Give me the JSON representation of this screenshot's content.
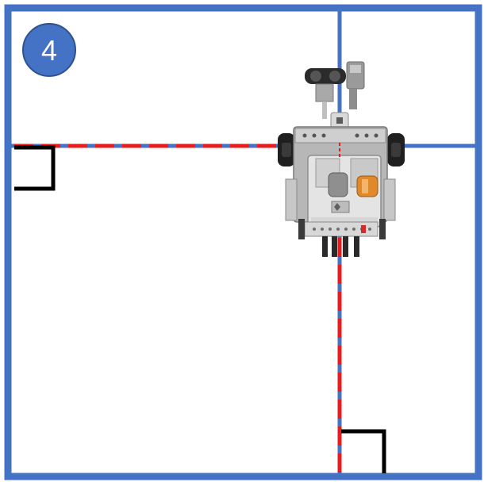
{
  "step_badge": {
    "number": "4"
  },
  "colors": {
    "frame": "#4472c4",
    "dashed_path": "#e81c1c",
    "corner_marker": "#000000",
    "badge_fill": "#4472c4",
    "badge_border": "#2f528f",
    "badge_text": "#ffffff"
  },
  "robot": {
    "icon": "lego-robot-icon"
  }
}
